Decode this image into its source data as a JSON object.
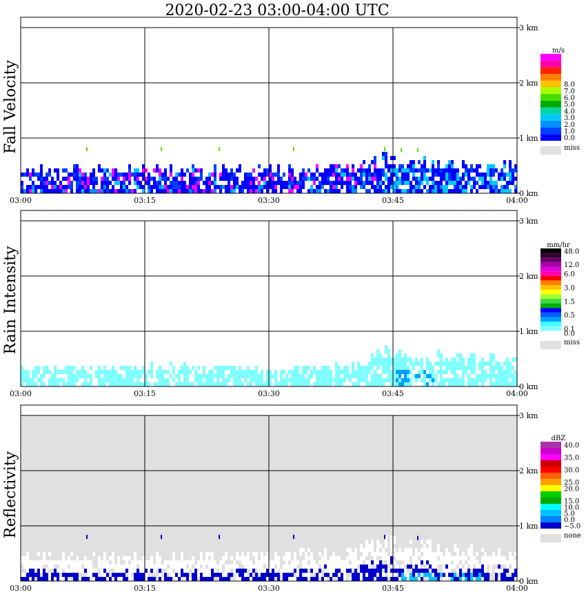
{
  "title": "2020-02-23   03:00-04:00 UTC",
  "x_ticks": [
    "03:00",
    "03:15",
    "03:30",
    "03:45",
    "04:00"
  ],
  "y_ticks": [
    "0 km",
    "1 km",
    "2 km",
    "3 km"
  ],
  "panels": [
    {
      "id": "fall-velocity",
      "title": "Fall Velocity",
      "background": "#ffffff",
      "legend": {
        "unit": "m/s",
        "miss_label": "miss",
        "colors": [
          "#0000ff",
          "#0040ff",
          "#0090ff",
          "#00c8ff",
          "#00d8a0",
          "#00aa00",
          "#44dd00",
          "#aaff00",
          "#ffc000",
          "#ff8000",
          "#ff2000",
          "#ff00aa",
          "#ff00ff"
        ],
        "labels": [
          {
            "text": "0.0",
            "band": 0
          },
          {
            "text": "1.0",
            "band": 1
          },
          {
            "text": "2.0",
            "band": 2
          },
          {
            "text": "3.0",
            "band": 3
          },
          {
            "text": "4.0",
            "band": 4
          },
          {
            "text": "5.0",
            "band": 5
          },
          {
            "text": "6.0",
            "band": 6
          },
          {
            "text": "7.0",
            "band": 7
          },
          {
            "text": "8.0",
            "band": 8
          }
        ]
      }
    },
    {
      "id": "rain-intensity",
      "title": "Rain Intensity",
      "background": "#ffffff",
      "legend": {
        "unit": "mm/hr",
        "miss_label": "miss",
        "colors": [
          "#ffffff",
          "#80ffff",
          "#40ffff",
          "#00a0ff",
          "#0060ff",
          "#0000ff",
          "#00b000",
          "#40dd40",
          "#a0ff30",
          "#ffff00",
          "#ffc000",
          "#ff8000",
          "#ff0000",
          "#ff00aa",
          "#dd00dd",
          "#aa00aa",
          "#660066",
          "#330033",
          "#000000"
        ],
        "labels": [
          {
            "text": "0.0",
            "band": 0
          },
          {
            "text": "0.1",
            "band": 1
          },
          {
            "text": "0.5",
            "band": 4
          },
          {
            "text": "1.5",
            "band": 7
          },
          {
            "text": "3.0",
            "band": 10
          },
          {
            "text": "6.0",
            "band": 13
          },
          {
            "text": "12.0",
            "band": 15
          },
          {
            "text": "48.0",
            "band": 18
          }
        ]
      }
    },
    {
      "id": "reflectivity",
      "title": "Reflectivity",
      "background": "#e0e0e0",
      "legend": {
        "unit": "dBZ",
        "miss_label": "none",
        "colors": [
          "#0000cc",
          "#0080ff",
          "#00c0ff",
          "#00ffff",
          "#00aa00",
          "#00cc00",
          "#ffff00",
          "#ffa000",
          "#ff6000",
          "#ff0000",
          "#cc0000",
          "#ff00ff",
          "#cc00cc",
          "#aa33aa"
        ],
        "labels": [
          {
            "text": "−5.0",
            "band": 0
          },
          {
            "text": "0.0",
            "band": 1
          },
          {
            "text": "5.0",
            "band": 2
          },
          {
            "text": "10.0",
            "band": 3
          },
          {
            "text": "15.0",
            "band": 4
          },
          {
            "text": "20.0",
            "band": 6
          },
          {
            "text": "25.0",
            "band": 7
          },
          {
            "text": "30.0",
            "band": 9
          },
          {
            "text": "35.0",
            "band": 11
          },
          {
            "text": "40.0",
            "band": 13
          }
        ]
      }
    }
  ],
  "chart_data": [
    {
      "type": "heatmap",
      "title": "Fall Velocity",
      "x": {
        "range": [
          "03:00",
          "04:00"
        ],
        "ticks": [
          "03:00",
          "03:15",
          "03:30",
          "03:45",
          "04:00"
        ]
      },
      "y": {
        "range_km": [
          0,
          3
        ],
        "ticks": [
          "0 km",
          "1 km",
          "2 km",
          "3 km"
        ]
      },
      "colorbar_unit": "m/s",
      "grid": true,
      "echo_top_km": [
        {
          "t": "03:00",
          "km": 0.42
        },
        {
          "t": "03:10",
          "km": 0.42
        },
        {
          "t": "03:20",
          "km": 0.42
        },
        {
          "t": "03:30",
          "km": 0.42
        },
        {
          "t": "03:40",
          "km": 0.42
        },
        {
          "t": "03:43",
          "km": 0.62
        },
        {
          "t": "03:47",
          "km": 0.58
        },
        {
          "t": "03:52",
          "km": 0.5
        },
        {
          "t": "04:00",
          "km": 0.5
        }
      ],
      "isolated_returns": [
        {
          "t": "03:08",
          "km": 0.8
        },
        {
          "t": "03:17",
          "km": 0.8
        },
        {
          "t": "03:24",
          "km": 0.8
        },
        {
          "t": "03:33",
          "km": 0.8
        },
        {
          "t": "03:44",
          "km": 0.8
        },
        {
          "t": "03:46",
          "km": 0.78
        },
        {
          "t": "03:48",
          "km": 0.78
        }
      ]
    },
    {
      "type": "heatmap",
      "title": "Rain Intensity",
      "x": {
        "range": [
          "03:00",
          "04:00"
        ],
        "ticks": [
          "03:00",
          "03:15",
          "03:30",
          "03:45",
          "04:00"
        ]
      },
      "y": {
        "range_km": [
          0,
          3
        ],
        "ticks": [
          "0 km",
          "1 km",
          "2 km",
          "3 km"
        ]
      },
      "colorbar_unit": "mm/hr",
      "grid": true,
      "echo_top_km": [
        {
          "t": "03:00",
          "km": 0.3
        },
        {
          "t": "03:15",
          "km": 0.35
        },
        {
          "t": "03:30",
          "km": 0.3
        },
        {
          "t": "03:40",
          "km": 0.35
        },
        {
          "t": "03:43",
          "km": 0.62
        },
        {
          "t": "03:50",
          "km": 0.55
        },
        {
          "t": "04:00",
          "km": 0.5
        }
      ]
    },
    {
      "type": "heatmap",
      "title": "Reflectivity",
      "x": {
        "range": [
          "03:00",
          "04:00"
        ],
        "ticks": [
          "03:00",
          "03:15",
          "03:30",
          "03:45",
          "04:00"
        ]
      },
      "y": {
        "range_km": [
          0,
          3
        ],
        "ticks": [
          "0 km",
          "1 km",
          "2 km",
          "3 km"
        ]
      },
      "colorbar_unit": "dBZ",
      "grid": true,
      "echo_top_km": [
        {
          "t": "03:00",
          "km": 0.42
        },
        {
          "t": "03:20",
          "km": 0.45
        },
        {
          "t": "03:40",
          "km": 0.5
        },
        {
          "t": "03:44",
          "km": 0.75
        },
        {
          "t": "03:50",
          "km": 0.62
        },
        {
          "t": "04:00",
          "km": 0.5
        }
      ],
      "isolated_returns": [
        {
          "t": "03:08",
          "km": 0.8
        },
        {
          "t": "03:17",
          "km": 0.8
        },
        {
          "t": "03:24",
          "km": 0.8
        },
        {
          "t": "03:33",
          "km": 0.8
        },
        {
          "t": "03:44",
          "km": 0.8
        },
        {
          "t": "03:48",
          "km": 0.78
        }
      ]
    }
  ]
}
